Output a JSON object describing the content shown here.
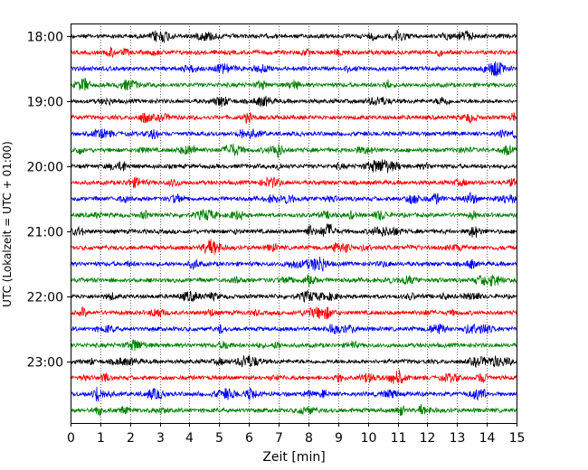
{
  "chart_data": {
    "type": "line",
    "title": "",
    "xlabel": "Zeit  [min]",
    "ylabel": "UTC (Lokalzeit = UTC + 01:00)",
    "xlim": [
      0,
      15
    ],
    "x_ticks": [
      0,
      1,
      2,
      3,
      4,
      5,
      6,
      7,
      8,
      9,
      10,
      11,
      12,
      13,
      14,
      15
    ],
    "y_tick_labels": [
      "18:00",
      "19:00",
      "20:00",
      "21:00",
      "22:00",
      "23:00"
    ],
    "grid": {
      "x": true,
      "y": false,
      "style": "dotted"
    },
    "trace_start_times": [
      "18:00",
      "18:15",
      "18:30",
      "18:45",
      "19:00",
      "19:15",
      "19:30",
      "19:45",
      "20:00",
      "20:15",
      "20:30",
      "20:45",
      "21:00",
      "21:15",
      "21:30",
      "21:45",
      "22:00",
      "22:15",
      "22:30",
      "22:45",
      "23:00",
      "23:15",
      "23:30",
      "23:45"
    ],
    "trace_color_cycle": [
      "#000000",
      "#ff0000",
      "#0000ff",
      "#008000"
    ],
    "trace_duration_min": 15
  }
}
